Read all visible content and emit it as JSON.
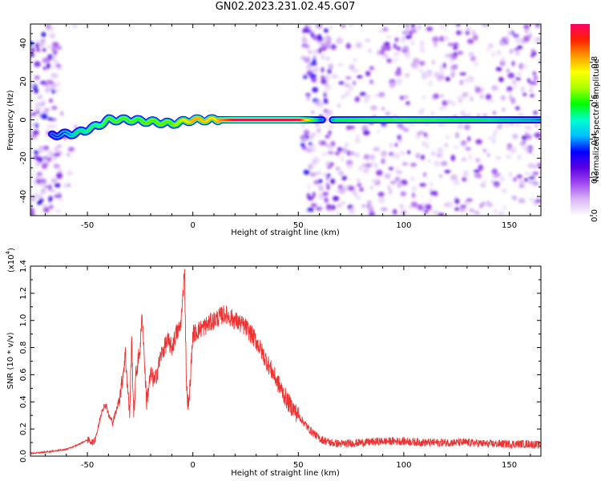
{
  "figure": {
    "title": "GN02.2023.231.02.45.G07"
  },
  "colors": {
    "snr_line": "#ee3333",
    "colormap": [
      "#ffffff",
      "#d9b8f5",
      "#a24cf0",
      "#5a00e0",
      "#0000ff",
      "#00bfff",
      "#00ffcc",
      "#00ff00",
      "#aaff00",
      "#ffff00",
      "#ff9900",
      "#ff2200",
      "#ff0066"
    ]
  },
  "chart_data": [
    {
      "type": "heatmap",
      "title": "",
      "xlabel": "Height of straight line (km)",
      "ylabel": "Frequency (Hz)",
      "xlim": [
        -77,
        165
      ],
      "ylim": [
        -50,
        50
      ],
      "xticks": [
        -50,
        0,
        50,
        100,
        150
      ],
      "yticks": [
        -40,
        -20,
        0,
        20,
        40
      ],
      "colorbar": {
        "label": "Normalized spectral amplitude",
        "range": [
          0,
          1
        ],
        "ticks": [
          "0.0",
          "0.2",
          "0.4",
          "0.6",
          "0.8"
        ]
      },
      "ridge": {
        "description_points": [
          {
            "x": -67,
            "y": -8,
            "amp": 0.25
          },
          {
            "x": -55,
            "y": -7,
            "amp": 0.45
          },
          {
            "x": -45,
            "y": -3,
            "amp": 0.5
          },
          {
            "x": -40,
            "y": 0,
            "amp": 0.55
          },
          {
            "x": -30,
            "y": 0,
            "amp": 0.55
          },
          {
            "x": -20,
            "y": -1,
            "amp": 0.6
          },
          {
            "x": -10,
            "y": -2,
            "amp": 0.6
          },
          {
            "x": 0,
            "y": 0,
            "amp": 0.8
          },
          {
            "x": 10,
            "y": 0,
            "amp": 0.75
          },
          {
            "x": 20,
            "y": 0,
            "amp": 0.95
          },
          {
            "x": 50,
            "y": 0,
            "amp": 0.95
          },
          {
            "x": 62,
            "y": 0,
            "amp": 0.2
          },
          {
            "x": 68,
            "y": 0,
            "amp": 0.45
          },
          {
            "x": 100,
            "y": 0,
            "amp": 0.5
          },
          {
            "x": 130,
            "y": 0,
            "amp": 0.45
          },
          {
            "x": 165,
            "y": 0,
            "amp": 0.35
          }
        ]
      },
      "noise_regions": [
        {
          "x_range": [
            -77,
            -63
          ],
          "density": "high"
        },
        {
          "x_range": [
            -63,
            -55
          ],
          "density": "low"
        },
        {
          "x_range": [
            52,
            65
          ],
          "density": "high"
        },
        {
          "x_range": [
            65,
            165
          ],
          "density": "medium"
        }
      ]
    },
    {
      "type": "line",
      "title": "",
      "xlabel": "Height of straight line (km)",
      "ylabel": "SNR (10 * v/v)",
      "y_multiplier_label": "(x10",
      "y_multiplier_exponent": "4",
      "xlim": [
        -77,
        165
      ],
      "ylim": [
        0,
        1.4
      ],
      "xticks": [
        -50,
        0,
        50,
        100,
        150
      ],
      "yticks": [
        "0.0",
        "0.2",
        "0.4",
        "0.6",
        "0.8",
        "1.0",
        "1.2",
        "1.4"
      ],
      "series": [
        {
          "x": [
            -77,
            -70,
            -60,
            -55,
            -50,
            -47,
            -45,
            -43,
            -41,
            -40,
            -38,
            -36,
            -34,
            -32,
            -30,
            -29,
            -28,
            -27,
            -26,
            -25,
            -24,
            -22,
            -20,
            -18,
            -15,
            -12,
            -10,
            -8,
            -6,
            -5,
            -4,
            -3,
            -2,
            0,
            5,
            10,
            15,
            20,
            22,
            25,
            30,
            35,
            40,
            45,
            50,
            55,
            60,
            65,
            70,
            80,
            90,
            100,
            110,
            120,
            130,
            140,
            150,
            160,
            165
          ],
          "y": [
            0.02,
            0.03,
            0.05,
            0.08,
            0.12,
            0.1,
            0.2,
            0.35,
            0.38,
            0.3,
            0.25,
            0.35,
            0.5,
            0.75,
            0.3,
            0.85,
            0.3,
            0.6,
            0.7,
            0.8,
            1.05,
            0.4,
            0.6,
            0.55,
            0.75,
            0.85,
            0.8,
            0.9,
            0.95,
            1.1,
            1.4,
            0.5,
            0.35,
            0.9,
            0.95,
            1.0,
            1.05,
            1.0,
            0.98,
            0.95,
            0.85,
            0.7,
            0.55,
            0.4,
            0.3,
            0.2,
            0.13,
            0.1,
            0.09,
            0.1,
            0.11,
            0.11,
            0.1,
            0.1,
            0.1,
            0.09,
            0.09,
            0.09,
            0.08
          ]
        }
      ]
    }
  ]
}
